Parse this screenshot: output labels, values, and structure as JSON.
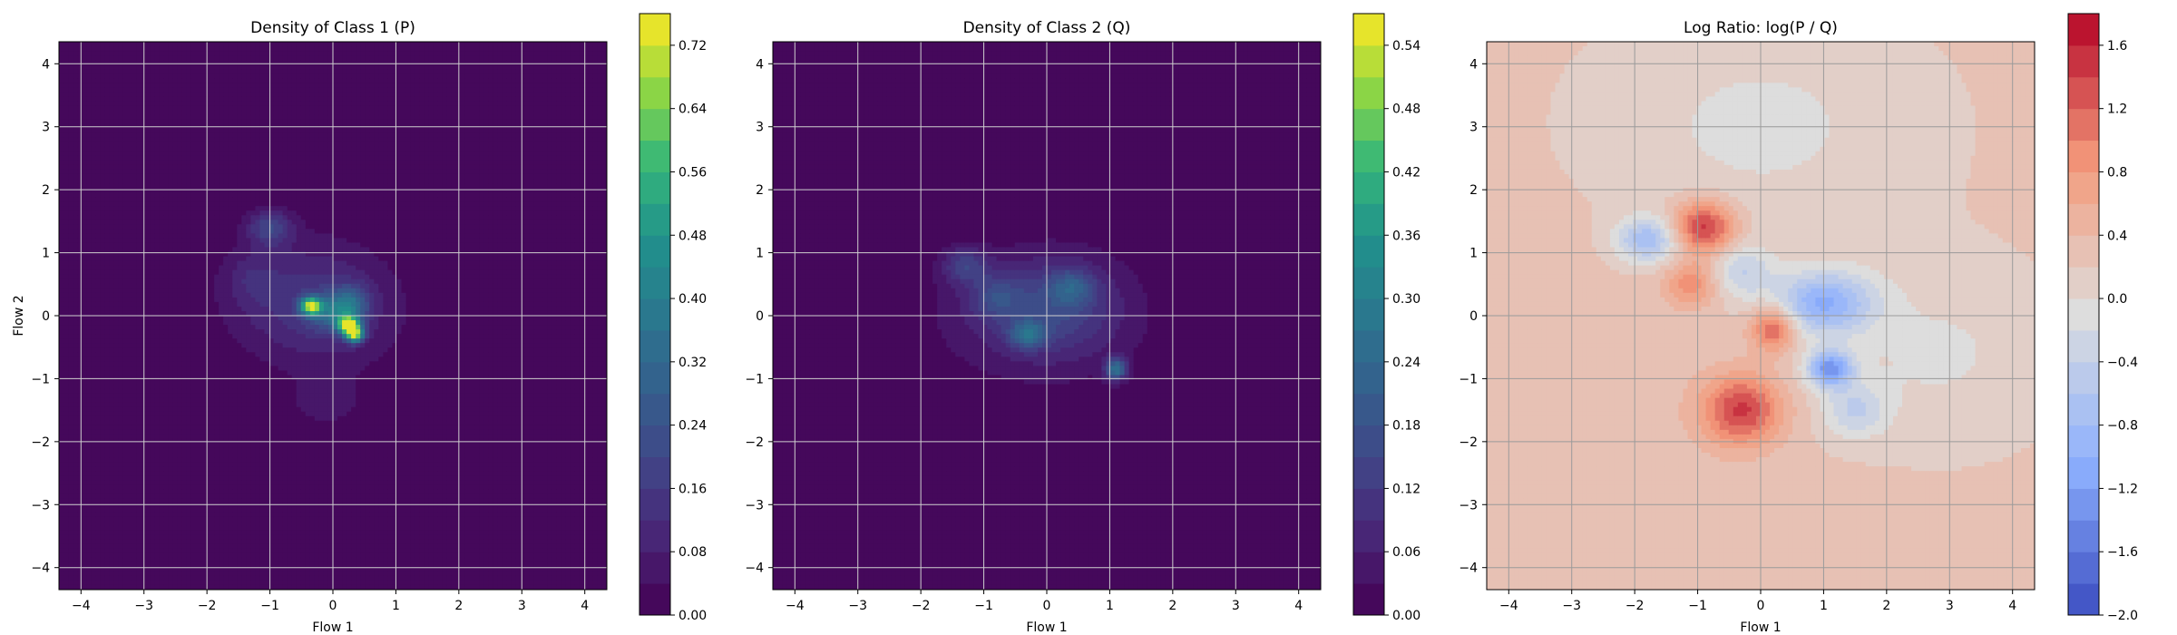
{
  "chart_data": [
    {
      "type": "heatmap",
      "title": "Density of Class 1 (P)",
      "xlabel": "Flow 1",
      "ylabel": "Flow 2",
      "xlim": [
        -4.35,
        4.35
      ],
      "ylim": [
        -4.35,
        4.35
      ],
      "xticks": [
        -4,
        -3,
        -2,
        -1,
        0,
        1,
        2,
        3,
        4
      ],
      "yticks": [
        -4,
        -3,
        -2,
        -1,
        0,
        1,
        2,
        3,
        4
      ],
      "grid": true,
      "colormap": "viridis",
      "colorbar": {
        "min": 0.0,
        "max": 0.76,
        "ticks": [
          0.0,
          0.08,
          0.16,
          0.24,
          0.32,
          0.4,
          0.48,
          0.56,
          0.64,
          0.72
        ],
        "tick_labels": [
          "0.00",
          "0.08",
          "0.16",
          "0.24",
          "0.32",
          "0.40",
          "0.48",
          "0.56",
          "0.64",
          "0.72"
        ]
      },
      "blobs": [
        {
          "x": -0.5,
          "y": 0.3,
          "sx": 0.85,
          "sy": 0.65,
          "a": 0.1
        },
        {
          "x": 0.0,
          "y": 0.0,
          "sx": 0.9,
          "sy": 0.7,
          "a": 0.06
        },
        {
          "x": -0.35,
          "y": 0.15,
          "sx": 0.12,
          "sy": 0.1,
          "a": 0.55
        },
        {
          "x": 0.25,
          "y": -0.15,
          "sx": 0.12,
          "sy": 0.1,
          "a": 0.6
        },
        {
          "x": 0.35,
          "y": -0.3,
          "sx": 0.1,
          "sy": 0.09,
          "a": 0.55
        },
        {
          "x": 0.0,
          "y": 0.05,
          "sx": 0.25,
          "sy": 0.2,
          "a": 0.22
        },
        {
          "x": -1.0,
          "y": 1.4,
          "sx": 0.25,
          "sy": 0.2,
          "a": 0.18
        },
        {
          "x": 0.3,
          "y": 0.2,
          "sx": 0.2,
          "sy": 0.2,
          "a": 0.2
        },
        {
          "x": -0.1,
          "y": -1.4,
          "sx": 0.45,
          "sy": 0.3,
          "a": 0.05
        },
        {
          "x": -1.3,
          "y": 0.6,
          "sx": 0.3,
          "sy": 0.3,
          "a": 0.06
        }
      ]
    },
    {
      "type": "heatmap",
      "title": "Density of Class 2 (Q)",
      "xlabel": "Flow 1",
      "ylabel": "",
      "xlim": [
        -4.35,
        4.35
      ],
      "ylim": [
        -4.35,
        4.35
      ],
      "xticks": [
        -4,
        -3,
        -2,
        -1,
        0,
        1,
        2,
        3,
        4
      ],
      "yticks": [
        -4,
        -3,
        -2,
        -1,
        0,
        1,
        2,
        3,
        4
      ],
      "grid": true,
      "colormap": "viridis",
      "colorbar": {
        "min": 0.0,
        "max": 0.57,
        "ticks": [
          0.0,
          0.06,
          0.12,
          0.18,
          0.24,
          0.3,
          0.36,
          0.42,
          0.48,
          0.54
        ],
        "tick_labels": [
          "0.00",
          "0.06",
          "0.12",
          "0.18",
          "0.24",
          "0.30",
          "0.36",
          "0.42",
          "0.48",
          "0.54"
        ]
      },
      "blobs": [
        {
          "x": -0.1,
          "y": 0.0,
          "sx": 1.1,
          "sy": 0.7,
          "a": 0.09
        },
        {
          "x": 0.2,
          "y": 0.2,
          "sx": 0.6,
          "sy": 0.5,
          "a": 0.07
        },
        {
          "x": -1.3,
          "y": 0.8,
          "sx": 0.25,
          "sy": 0.2,
          "a": 0.12
        },
        {
          "x": -0.3,
          "y": -0.3,
          "sx": 0.2,
          "sy": 0.15,
          "a": 0.18
        },
        {
          "x": 1.1,
          "y": -0.85,
          "sx": 0.12,
          "sy": 0.12,
          "a": 0.25
        },
        {
          "x": 0.4,
          "y": 0.45,
          "sx": 0.25,
          "sy": 0.2,
          "a": 0.12
        },
        {
          "x": -0.8,
          "y": 0.3,
          "sx": 0.3,
          "sy": 0.25,
          "a": 0.1
        }
      ]
    },
    {
      "type": "heatmap",
      "title": "Log Ratio: log(P / Q)",
      "xlabel": "Flow 1",
      "ylabel": "",
      "xlim": [
        -4.35,
        4.35
      ],
      "ylim": [
        -4.35,
        4.35
      ],
      "xticks": [
        -4,
        -3,
        -2,
        -1,
        0,
        1,
        2,
        3,
        4
      ],
      "yticks": [
        -4,
        -3,
        -2,
        -1,
        0,
        1,
        2,
        3,
        4
      ],
      "grid": true,
      "colormap": "coolwarm",
      "colorbar": {
        "min": -2.0,
        "max": 1.8,
        "ticks": [
          -2.0,
          -1.6,
          -1.2,
          -0.8,
          -0.4,
          0.0,
          0.4,
          0.8,
          1.2,
          1.6
        ],
        "tick_labels": [
          "−2.0",
          "−1.6",
          "−1.2",
          "−0.8",
          "−0.4",
          "0.0",
          "0.4",
          "0.8",
          "1.2",
          "1.6"
        ]
      },
      "base": 0.25,
      "blobs": [
        {
          "x": -0.9,
          "y": 1.4,
          "sx": 0.35,
          "sy": 0.3,
          "a": 1.3
        },
        {
          "x": -0.3,
          "y": -1.5,
          "sx": 0.45,
          "sy": 0.4,
          "a": 1.2
        },
        {
          "x": 0.2,
          "y": -0.2,
          "sx": 0.25,
          "sy": 0.25,
          "a": 1.1
        },
        {
          "x": -1.8,
          "y": 1.2,
          "sx": 0.35,
          "sy": 0.25,
          "a": -1.0
        },
        {
          "x": 1.0,
          "y": 0.2,
          "sx": 0.55,
          "sy": 0.35,
          "a": -1.2
        },
        {
          "x": 1.1,
          "y": -0.85,
          "sx": 0.25,
          "sy": 0.2,
          "a": -1.5
        },
        {
          "x": -0.3,
          "y": 0.7,
          "sx": 0.35,
          "sy": 0.3,
          "a": -0.6
        },
        {
          "x": -1.1,
          "y": 0.5,
          "sx": 0.3,
          "sy": 0.25,
          "a": 0.7
        },
        {
          "x": 1.5,
          "y": -1.5,
          "sx": 0.35,
          "sy": 0.3,
          "a": -0.6
        },
        {
          "x": 0.0,
          "y": 3.0,
          "sx": 1.8,
          "sy": 1.2,
          "a": -0.3
        },
        {
          "x": 2.8,
          "y": -0.6,
          "sx": 1.3,
          "sy": 1.0,
          "a": -0.28
        },
        {
          "x": -3.0,
          "y": -1.5,
          "sx": 1.3,
          "sy": 1.6,
          "a": 0.1
        }
      ]
    }
  ]
}
